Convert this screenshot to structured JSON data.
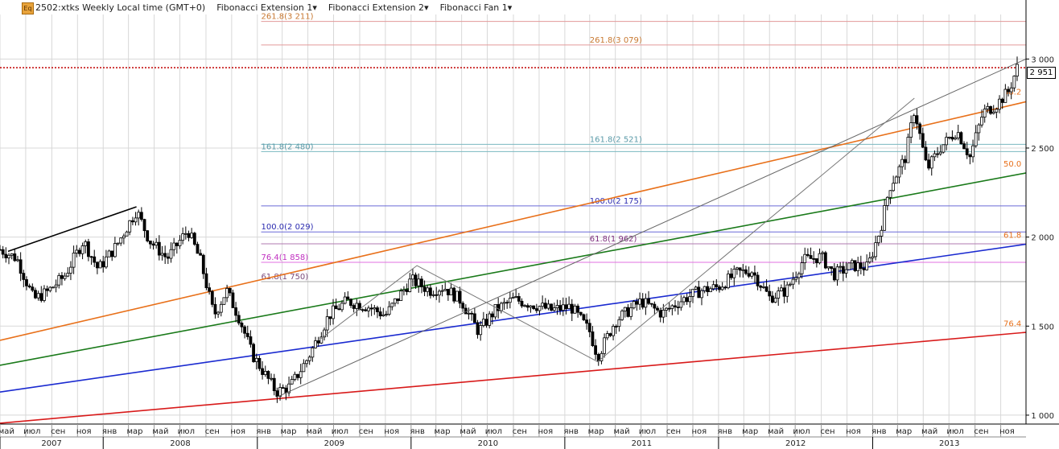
{
  "header": {
    "logo": "Eq",
    "symbol": "2502:xtks Weekly Local time (GMT+0)",
    "tools": [
      "Fibonacci Extension 1",
      "Fibonacci Extension 2",
      "Fibonacci Fan 1"
    ],
    "dropdown_glyph": "▾"
  },
  "chart_data": {
    "type": "candlestick",
    "title": "2502:xtks Weekly Local time (GMT+0)",
    "xlabel": "",
    "ylabel": "",
    "ylim": [
      950,
      3250
    ],
    "xlim": [
      "2007-05-01",
      "2013-12-31"
    ],
    "grid": true,
    "last_price": "2 951",
    "last_price_value": 2951,
    "y_ticks": [
      {
        "value": 1000,
        "label": "1 000"
      },
      {
        "value": 1500,
        "label": "1 500"
      },
      {
        "value": 2000,
        "label": "2 000"
      },
      {
        "value": 2500,
        "label": "2 500"
      },
      {
        "value": 3000,
        "label": "3 000"
      }
    ],
    "x_month_labels": [
      {
        "date": "2007-05-01",
        "label": "май"
      },
      {
        "date": "2007-07-01",
        "label": "июл"
      },
      {
        "date": "2007-09-01",
        "label": "сен"
      },
      {
        "date": "2007-11-01",
        "label": "ноя"
      },
      {
        "date": "2008-01-01",
        "label": "янв"
      },
      {
        "date": "2008-03-01",
        "label": "мар"
      },
      {
        "date": "2008-05-01",
        "label": "май"
      },
      {
        "date": "2008-07-01",
        "label": "июл"
      },
      {
        "date": "2008-09-01",
        "label": "сен"
      },
      {
        "date": "2008-11-01",
        "label": "ноя"
      },
      {
        "date": "2009-01-01",
        "label": "янв"
      },
      {
        "date": "2009-03-01",
        "label": "мар"
      },
      {
        "date": "2009-05-01",
        "label": "май"
      },
      {
        "date": "2009-07-01",
        "label": "июл"
      },
      {
        "date": "2009-09-01",
        "label": "сен"
      },
      {
        "date": "2009-11-01",
        "label": "ноя"
      },
      {
        "date": "2010-01-01",
        "label": "янв"
      },
      {
        "date": "2010-03-01",
        "label": "мар"
      },
      {
        "date": "2010-05-01",
        "label": "май"
      },
      {
        "date": "2010-07-01",
        "label": "июл"
      },
      {
        "date": "2010-09-01",
        "label": "сен"
      },
      {
        "date": "2010-11-01",
        "label": "ноя"
      },
      {
        "date": "2011-01-01",
        "label": "янв"
      },
      {
        "date": "2011-03-01",
        "label": "мар"
      },
      {
        "date": "2011-05-01",
        "label": "май"
      },
      {
        "date": "2011-07-01",
        "label": "июл"
      },
      {
        "date": "2011-09-01",
        "label": "сен"
      },
      {
        "date": "2011-11-01",
        "label": "ноя"
      },
      {
        "date": "2012-01-01",
        "label": "янв"
      },
      {
        "date": "2012-03-01",
        "label": "мар"
      },
      {
        "date": "2012-05-01",
        "label": "май"
      },
      {
        "date": "2012-07-01",
        "label": "июл"
      },
      {
        "date": "2012-09-01",
        "label": "сен"
      },
      {
        "date": "2012-11-01",
        "label": "ноя"
      },
      {
        "date": "2013-01-01",
        "label": "янв"
      },
      {
        "date": "2013-03-01",
        "label": "мар"
      },
      {
        "date": "2013-05-01",
        "label": "май"
      },
      {
        "date": "2013-07-01",
        "label": "июл"
      },
      {
        "date": "2013-09-01",
        "label": "сен"
      },
      {
        "date": "2013-11-01",
        "label": "ноя"
      }
    ],
    "x_year_labels": [
      {
        "date": "2007-05-01",
        "label": "2007"
      },
      {
        "date": "2008-01-01",
        "label": "2008"
      },
      {
        "date": "2009-01-01",
        "label": "2009"
      },
      {
        "date": "2010-01-01",
        "label": "2010"
      },
      {
        "date": "2011-01-01",
        "label": "2011"
      },
      {
        "date": "2012-01-01",
        "label": "2012"
      },
      {
        "date": "2013-01-01",
        "label": "2013"
      }
    ],
    "price_path": [
      [
        "2007-05-01",
        1930
      ],
      [
        "2007-06-10",
        1880
      ],
      [
        "2007-07-20",
        1650
      ],
      [
        "2007-08-20",
        1690
      ],
      [
        "2007-10-01",
        1780
      ],
      [
        "2007-11-15",
        1980
      ],
      [
        "2007-12-20",
        1820
      ],
      [
        "2008-02-01",
        1950
      ],
      [
        "2008-03-20",
        2150
      ],
      [
        "2008-04-20",
        1980
      ],
      [
        "2008-06-01",
        1880
      ],
      [
        "2008-07-20",
        2040
      ],
      [
        "2008-08-20",
        1860
      ],
      [
        "2008-09-20",
        1560
      ],
      [
        "2008-10-20",
        1700
      ],
      [
        "2008-11-20",
        1540
      ],
      [
        "2008-12-20",
        1340
      ],
      [
        "2009-02-15",
        1130
      ],
      [
        "2009-03-20",
        1160
      ],
      [
        "2009-05-01",
        1320
      ],
      [
        "2009-06-20",
        1560
      ],
      [
        "2009-08-01",
        1640
      ],
      [
        "2009-09-20",
        1610
      ],
      [
        "2009-11-01",
        1560
      ],
      [
        "2010-01-01",
        1760
      ],
      [
        "2010-02-15",
        1700
      ],
      [
        "2010-03-20",
        1720
      ],
      [
        "2010-05-01",
        1640
      ],
      [
        "2010-06-10",
        1470
      ],
      [
        "2010-07-20",
        1590
      ],
      [
        "2010-09-01",
        1650
      ],
      [
        "2010-10-20",
        1620
      ],
      [
        "2010-11-30",
        1590
      ],
      [
        "2011-01-15",
        1610
      ],
      [
        "2011-03-01",
        1470
      ],
      [
        "2011-03-20",
        1330
      ],
      [
        "2011-05-01",
        1530
      ],
      [
        "2011-07-01",
        1640
      ],
      [
        "2011-08-20",
        1570
      ],
      [
        "2011-10-01",
        1640
      ],
      [
        "2011-11-20",
        1700
      ],
      [
        "2012-01-01",
        1720
      ],
      [
        "2012-02-15",
        1800
      ],
      [
        "2012-03-20",
        1810
      ],
      [
        "2012-05-01",
        1660
      ],
      [
        "2012-06-10",
        1700
      ],
      [
        "2012-07-20",
        1870
      ],
      [
        "2012-09-01",
        1890
      ],
      [
        "2012-10-01",
        1790
      ],
      [
        "2012-11-15",
        1840
      ],
      [
        "2012-12-20",
        1830
      ],
      [
        "2013-01-20",
        2050
      ],
      [
        "2013-02-10",
        2280
      ],
      [
        "2013-03-20",
        2450
      ],
      [
        "2013-04-10",
        2720
      ],
      [
        "2013-05-10",
        2380
      ],
      [
        "2013-06-10",
        2500
      ],
      [
        "2013-07-20",
        2600
      ],
      [
        "2013-08-20",
        2450
      ],
      [
        "2013-09-20",
        2700
      ],
      [
        "2013-10-20",
        2740
      ],
      [
        "2013-11-20",
        2820
      ],
      [
        "2013-12-10",
        2951
      ]
    ],
    "levels": [
      {
        "name": "261.8(3 211)",
        "value": 3211,
        "from": "2009-01-10",
        "color": "#e39a9a",
        "label_color": "#c87830"
      },
      {
        "name": "261.8(3 079)",
        "value": 3079,
        "from": "2009-01-10",
        "color": "#e39a9a",
        "label_color": "#c87830"
      },
      {
        "name": "161.8(2 521)",
        "value": 2521,
        "from": "2009-01-10",
        "color": "#7ab8c0",
        "label_color": "#5a9aa8"
      },
      {
        "name": "161.8(2 480)",
        "value": 2480,
        "from": "2009-01-10",
        "color": "#7ab8c0",
        "label_color": "#5a9aa8"
      },
      {
        "name": "100.0(2 175)",
        "value": 2175,
        "from": "2009-01-10",
        "color": "#6a6ad8",
        "label_color": "#2b2bb0"
      },
      {
        "name": "100.0(2 029)",
        "value": 2029,
        "from": "2009-01-10",
        "color": "#6a6ad8",
        "label_color": "#2b2bb0"
      },
      {
        "name": "61.8(1 962)",
        "value": 1962,
        "from": "2009-01-10",
        "color": "#b07ab0",
        "label_color": "#803080"
      },
      {
        "name": "76.4(1 858)",
        "value": 1858,
        "from": "2009-01-10",
        "color": "#e070e0",
        "label_color": "#c030c0"
      },
      {
        "name": "61.8(1 750)",
        "value": 1750,
        "from": "2009-01-10",
        "color": "#aaaaaa",
        "label_color": "#7a4a7a"
      }
    ],
    "level_label_positions": {
      "261.8(3 211)": "2009-01-10",
      "261.8(3 079)": "2011-03-01",
      "161.8(2 521)": "2011-03-01",
      "161.8(2 480)": "2009-01-10",
      "100.0(2 175)": "2011-03-01",
      "100.0(2 029)": "2009-01-10",
      "61.8(1 962)": "2011-03-01",
      "76.4(1 858)": "2009-01-10",
      "61.8(1 750)": "2009-01-10"
    },
    "fan_lines": [
      {
        "label": "",
        "color": "#e8701a",
        "p1": [
          "2007-05-01",
          1420
        ],
        "p2": [
          "2013-12-31",
          2760
        ]
      },
      {
        "label": "38.2",
        "color": "#e8701a",
        "label_date": "2013-12-20",
        "label_value": 2800
      },
      {
        "label": "",
        "color": "#1a7a1a",
        "p1": [
          "2007-05-01",
          1280
        ],
        "p2": [
          "2013-12-31",
          2360
        ]
      },
      {
        "label": "50.0",
        "color": "#e8701a",
        "label_date": "2013-12-20",
        "label_value": 2395
      },
      {
        "label": "",
        "color": "#1a2ad0",
        "p1": [
          "2007-05-01",
          1130
        ],
        "p2": [
          "2013-12-31",
          1960
        ]
      },
      {
        "label": "61.8",
        "color": "#e8701a",
        "label_date": "2013-12-20",
        "label_value": 1995
      },
      {
        "label": "",
        "color": "#d81a1a",
        "p1": [
          "2007-05-01",
          955
        ],
        "p2": [
          "2013-12-31",
          1465
        ]
      },
      {
        "label": "76.4",
        "color": "#e8701a",
        "label_date": "2013-12-20",
        "label_value": 1500
      }
    ],
    "trend_line": {
      "color": "#000000",
      "p1": [
        "2007-05-20",
        1920
      ],
      "p2": [
        "2008-03-20",
        2170
      ]
    },
    "channel_line": {
      "color": "#666666",
      "p1": [
        "2009-02-15",
        1100
      ],
      "p2": [
        "2013-12-31",
        3000
      ]
    },
    "zigzag": [
      [
        "2009-06-01",
        1430
      ],
      [
        "2010-01-15",
        1840
      ],
      [
        "2011-03-20",
        1300
      ],
      [
        "2013-04-10",
        2780
      ]
    ]
  }
}
